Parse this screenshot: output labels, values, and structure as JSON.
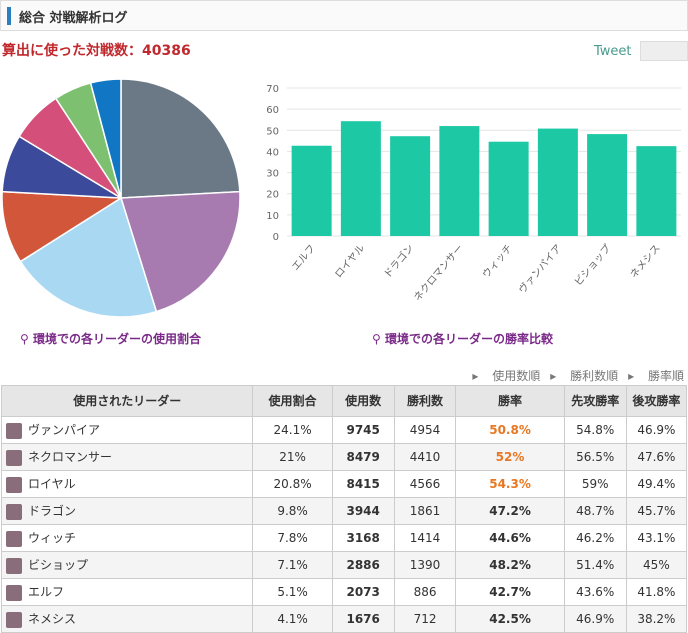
{
  "header": {
    "title": "総合 対戦解析ログ"
  },
  "total": {
    "label": "算出に使った対戦数：",
    "value": 40386
  },
  "tweet": "Tweet",
  "chart_data": [
    {
      "type": "pie",
      "caption": "環境での各リーダーの使用割合",
      "values": [
        24.1,
        21,
        20.8,
        9.8,
        7.8,
        7.1,
        5.1,
        4.1
      ],
      "colors": [
        "#6b7886",
        "#a77bb0",
        "#a9d9f2",
        "#d2573a",
        "#3b4a9a",
        "#d4507a",
        "#7dc070",
        "#1177c4"
      ]
    },
    {
      "type": "bar",
      "caption": "環境での各リーダーの勝率比較",
      "categories": [
        "エルフ",
        "ロイヤル",
        "ドラゴン",
        "ネクロマンサー",
        "ウィッチ",
        "ヴァンパイア",
        "ビショップ",
        "ネメシス"
      ],
      "values": [
        42.7,
        54.3,
        47.2,
        52,
        44.6,
        50.8,
        48.2,
        42.5
      ],
      "color": "#1dc8a4",
      "ylim": [
        0,
        70
      ],
      "yticks": [
        0,
        10,
        20,
        30,
        40,
        50,
        60,
        70
      ],
      "grid": true
    }
  ],
  "sort_links": [
    "使用数順",
    "勝利数順",
    "勝率順"
  ],
  "table": {
    "headers": [
      "使用されたリーダー",
      "使用割合",
      "使用数",
      "勝利数",
      "勝率",
      "先攻勝率",
      "後攻勝率"
    ],
    "highlight_color": "#e87722",
    "rows": [
      {
        "cells": [
          "ヴァンパイア",
          "24.1%",
          "9745",
          "4954",
          "50.8%",
          "54.8%",
          "46.9%"
        ],
        "highlight": true
      },
      {
        "cells": [
          "ネクロマンサー",
          "21%",
          "8479",
          "4410",
          "52%",
          "56.5%",
          "47.6%"
        ],
        "highlight": true
      },
      {
        "cells": [
          "ロイヤル",
          "20.8%",
          "8415",
          "4566",
          "54.3%",
          "59%",
          "49.4%"
        ],
        "highlight": true
      },
      {
        "cells": [
          "ドラゴン",
          "9.8%",
          "3944",
          "1861",
          "47.2%",
          "48.7%",
          "45.7%"
        ],
        "highlight": false
      },
      {
        "cells": [
          "ウィッチ",
          "7.8%",
          "3168",
          "1414",
          "44.6%",
          "46.2%",
          "43.1%"
        ],
        "highlight": false
      },
      {
        "cells": [
          "ビショップ",
          "7.1%",
          "2886",
          "1390",
          "48.2%",
          "51.4%",
          "45%"
        ],
        "highlight": false
      },
      {
        "cells": [
          "エルフ",
          "5.1%",
          "2073",
          "886",
          "42.7%",
          "43.6%",
          "41.8%"
        ],
        "highlight": false
      },
      {
        "cells": [
          "ネメシス",
          "4.1%",
          "1676",
          "712",
          "42.5%",
          "46.9%",
          "38.2%"
        ],
        "highlight": false
      }
    ]
  }
}
